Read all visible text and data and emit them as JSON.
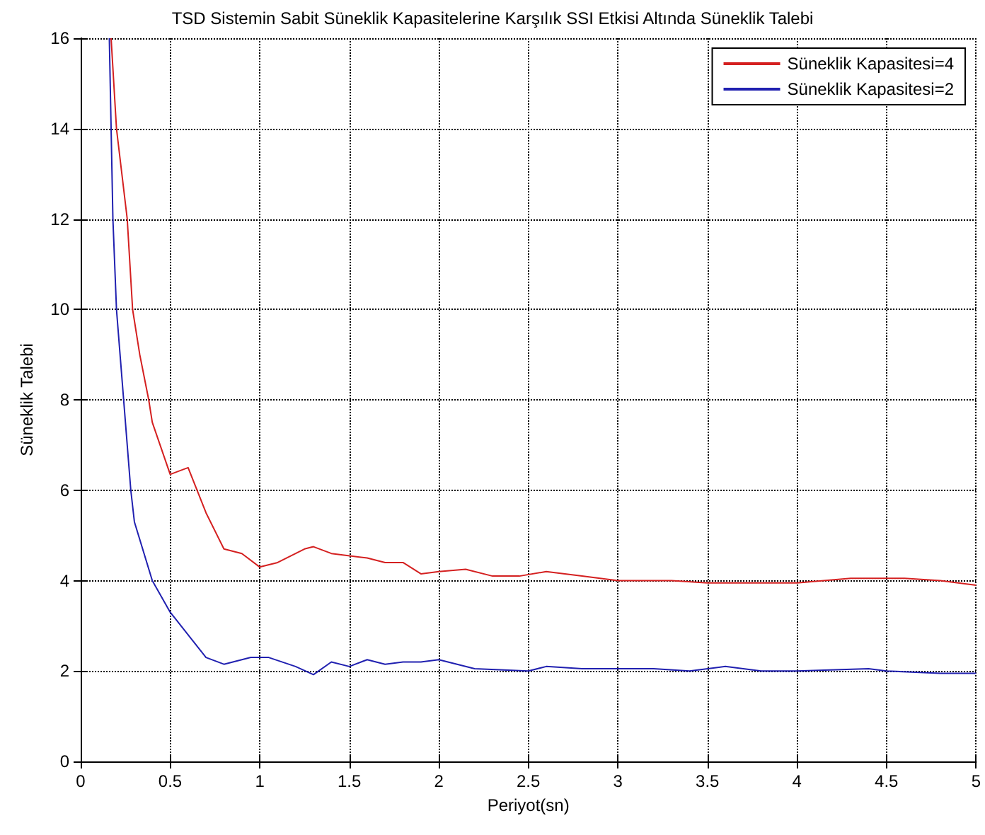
{
  "chart_data": {
    "type": "line",
    "title": "TSD Sistemin Sabit Süneklik Kapasitelerine Karşılık SSI Etkisi Altında Süneklik Talebi",
    "xlabel": "Periyot(sn)",
    "ylabel": "Süneklik Talebi",
    "xlim": [
      0,
      5
    ],
    "xticks": [
      0,
      0.5,
      1,
      1.5,
      2,
      2.5,
      3,
      3.5,
      4,
      4.5,
      5
    ],
    "ylim": [
      0,
      16
    ],
    "yticks": [
      0,
      2,
      4,
      6,
      8,
      10,
      12,
      14,
      16
    ],
    "grid": true,
    "legend": "top right",
    "marker": "none",
    "line_style": "solid",
    "series": [
      {
        "name": "Süneklik Kapasitesi=4",
        "color": "#d42020",
        "x": [
          0.17,
          0.2,
          0.26,
          0.29,
          0.33,
          0.38,
          0.4,
          0.5,
          0.6,
          0.7,
          0.8,
          0.9,
          1.0,
          1.1,
          1.25,
          1.3,
          1.4,
          1.6,
          1.7,
          1.8,
          1.9,
          2.0,
          2.15,
          2.3,
          2.45,
          2.6,
          2.8,
          3.0,
          3.3,
          3.5,
          4.0,
          4.3,
          4.6,
          4.8,
          5.0
        ],
        "values": [
          16,
          14,
          12,
          10,
          9,
          8,
          7.5,
          6.35,
          6.5,
          5.5,
          4.7,
          4.6,
          4.3,
          4.4,
          4.7,
          4.75,
          4.6,
          4.5,
          4.4,
          4.4,
          4.15,
          4.2,
          4.25,
          4.1,
          4.1,
          4.2,
          4.1,
          4.0,
          4.0,
          3.95,
          3.95,
          4.05,
          4.05,
          4.0,
          3.9
        ]
      },
      {
        "name": "Süneklik Kapasitesi=2",
        "color": "#2020b0",
        "x": [
          0.16,
          0.18,
          0.2,
          0.24,
          0.28,
          0.3,
          0.4,
          0.5,
          0.6,
          0.7,
          0.8,
          0.95,
          1.05,
          1.2,
          1.3,
          1.4,
          1.5,
          1.6,
          1.7,
          1.8,
          1.9,
          2.0,
          2.2,
          2.5,
          2.6,
          2.8,
          3.0,
          3.2,
          3.4,
          3.6,
          3.8,
          4.0,
          4.4,
          4.5,
          4.8,
          5.0
        ],
        "values": [
          16,
          12,
          10,
          8,
          6,
          5.3,
          4,
          3.3,
          2.8,
          2.3,
          2.15,
          2.3,
          2.3,
          2.1,
          1.92,
          2.2,
          2.1,
          2.25,
          2.15,
          2.2,
          2.2,
          2.25,
          2.05,
          2.0,
          2.1,
          2.05,
          2.05,
          2.05,
          2.0,
          2.1,
          2.0,
          2.0,
          2.05,
          2.0,
          1.95,
          1.95
        ]
      }
    ]
  }
}
